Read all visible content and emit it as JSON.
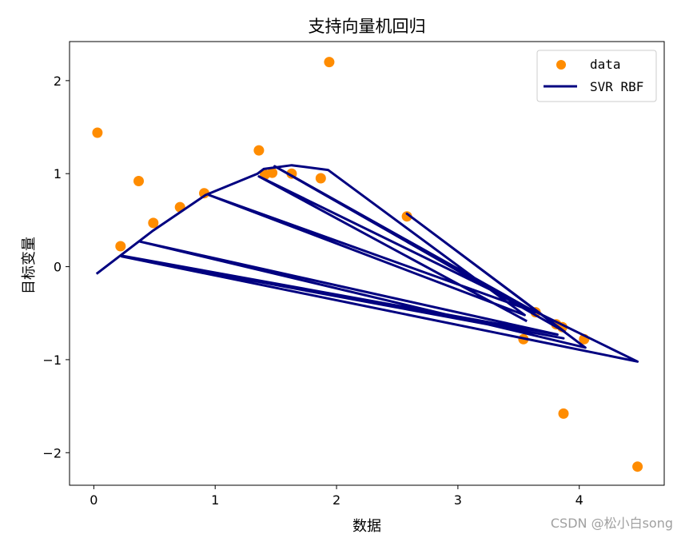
{
  "chart_data": {
    "type": "scatter",
    "title": "支持向量机回归",
    "xlabel": "数据",
    "ylabel": "目标变量",
    "xlim": [
      -0.2,
      4.7
    ],
    "ylim": [
      -2.35,
      2.42
    ],
    "xticks": [
      0,
      1,
      2,
      3,
      4
    ],
    "yticks": [
      -2,
      -1,
      0,
      1,
      2
    ],
    "xtick_labels": [
      "0",
      "1",
      "2",
      "3",
      "4"
    ],
    "ytick_labels": [
      "−2",
      "−1",
      "0",
      "1",
      "2"
    ],
    "grid": false,
    "legend_placement": "top-right",
    "series": [
      {
        "name": "data",
        "kind": "scatter",
        "color": "#ff8c00",
        "points": [
          [
            0.03,
            1.44
          ],
          [
            0.22,
            0.22
          ],
          [
            0.37,
            0.92
          ],
          [
            0.49,
            0.47
          ],
          [
            0.71,
            0.64
          ],
          [
            0.91,
            0.79
          ],
          [
            1.36,
            1.25
          ],
          [
            1.41,
            0.99
          ],
          [
            1.47,
            1.01
          ],
          [
            1.63,
            1.0
          ],
          [
            1.87,
            0.95
          ],
          [
            1.94,
            2.2
          ],
          [
            2.58,
            0.54
          ],
          [
            3.54,
            -0.78
          ],
          [
            3.64,
            -0.49
          ],
          [
            3.81,
            -0.62
          ],
          [
            3.86,
            -0.65
          ],
          [
            3.87,
            -1.58
          ],
          [
            4.04,
            -0.78
          ],
          [
            4.48,
            -2.15
          ]
        ]
      },
      {
        "name": "SVR RBF",
        "kind": "line",
        "color": "#000080",
        "points": [
          [
            0.03,
            -0.07
          ],
          [
            0.48,
            0.38
          ],
          [
            0.92,
            0.77
          ],
          [
            1.35,
            1.0
          ],
          [
            1.4,
            1.05
          ],
          [
            1.63,
            1.09
          ],
          [
            1.93,
            1.04
          ],
          [
            3.55,
            -0.52
          ],
          [
            0.95,
            0.77
          ],
          [
            3.64,
            -0.49
          ],
          [
            1.49,
            1.08
          ],
          [
            3.88,
            -0.7
          ],
          [
            2.58,
            0.57
          ],
          [
            4.05,
            -0.87
          ],
          [
            0.38,
            0.27
          ],
          [
            3.82,
            -0.73
          ],
          [
            0.22,
            0.12
          ],
          [
            3.87,
            -0.77
          ],
          [
            0.23,
            0.11
          ],
          [
            4.48,
            -1.02
          ],
          [
            1.36,
            0.97
          ],
          [
            3.56,
            -0.58
          ]
        ]
      }
    ]
  },
  "watermark": "CSDN @松小白song"
}
